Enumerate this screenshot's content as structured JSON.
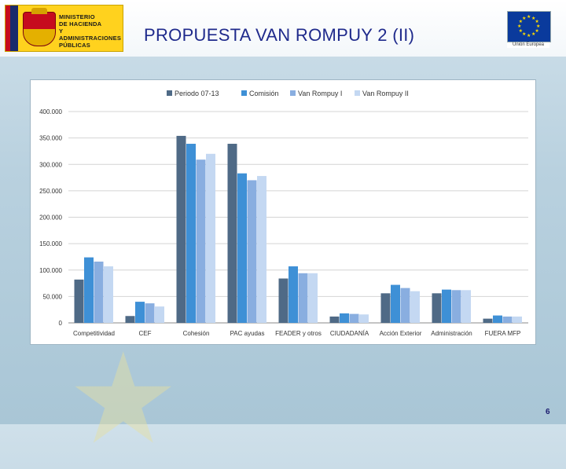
{
  "header": {
    "title": "PROPUESTA VAN ROMPUY 2 (II)",
    "ministry_logo_lines": [
      "MINISTERIO",
      "DE HACIENDA",
      "Y ADMINISTRACIONES",
      "PÚBLICAS"
    ],
    "eu_logo_caption": "Unión Europea"
  },
  "page_number": "6",
  "colors": {
    "Periodo 07-13": "#4f6a86",
    "Comisión": "#3e90d6",
    "Van Rompuy I": "#89aee0",
    "Van Rompuy II": "#c4d8f2",
    "title": "#1f2a8c"
  },
  "chart_data": {
    "type": "bar",
    "title": "",
    "xlabel": "",
    "ylabel": "",
    "ylim": [
      0,
      400000
    ],
    "grid": true,
    "legend_position": "top",
    "y_ticks": [
      "0",
      "50.000",
      "100.000",
      "150.000",
      "200.000",
      "250.000",
      "300.000",
      "350.000",
      "400.000"
    ],
    "categories": [
      "Competitividad",
      "CEF",
      "Cohesión",
      "PAC ayudas",
      "FEADER y otros",
      "CIUDADANÍA",
      "Acción Exterior",
      "Administración",
      "FUERA MFP"
    ],
    "series": [
      {
        "name": "Periodo 07-13",
        "values": [
          82000,
          13000,
          354000,
          339000,
          84000,
          12000,
          56000,
          56000,
          8000
        ]
      },
      {
        "name": "Comisión",
        "values": [
          124000,
          40000,
          339000,
          283000,
          107000,
          18000,
          72000,
          63000,
          14000
        ]
      },
      {
        "name": "Van Rompuy I",
        "values": [
          116000,
          37000,
          309000,
          270000,
          94000,
          17000,
          66000,
          62000,
          12000
        ]
      },
      {
        "name": "Van Rompuy II",
        "values": [
          107000,
          31000,
          320000,
          278000,
          94000,
          16000,
          60000,
          62000,
          12000
        ]
      }
    ]
  }
}
